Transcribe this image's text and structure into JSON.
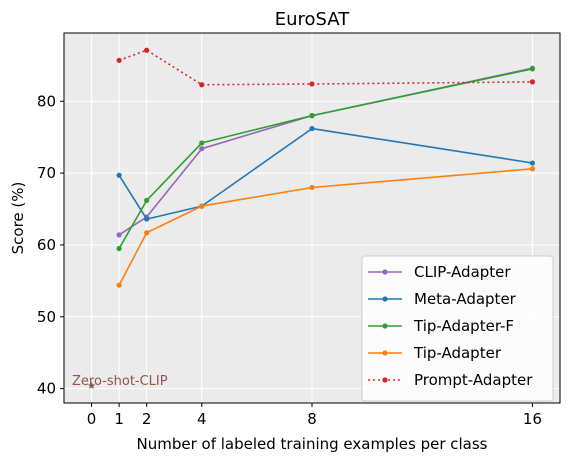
{
  "chart_data": {
    "type": "line",
    "title": "EuroSAT",
    "xlabel": "Number of labeled training examples per class",
    "ylabel": "Score (%)",
    "xlim": [
      -1.0,
      17.0
    ],
    "ylim": [
      38.0,
      89.5
    ],
    "xticks": [
      0,
      1,
      2,
      4,
      8,
      16
    ],
    "yticks": [
      40,
      50,
      60,
      70,
      80
    ],
    "grid": true,
    "legend_position": "lower-right",
    "series": [
      {
        "name": "CLIP-Adapter",
        "color": "#9467bd",
        "style": "solid",
        "x": [
          1,
          2,
          4,
          8,
          16
        ],
        "values": [
          61.4,
          63.9,
          73.4,
          78.0,
          84.6
        ]
      },
      {
        "name": "Meta-Adapter",
        "color": "#1f77b4",
        "style": "solid",
        "x": [
          1,
          2,
          4,
          8,
          16
        ],
        "values": [
          69.7,
          63.6,
          65.4,
          76.2,
          71.4
        ]
      },
      {
        "name": "Tip-Adapter-F",
        "color": "#2ca02c",
        "style": "solid",
        "x": [
          1,
          2,
          4,
          8,
          16
        ],
        "values": [
          59.5,
          66.2,
          74.2,
          78.0,
          84.5
        ]
      },
      {
        "name": "Tip-Adapter",
        "color": "#ff7f0e",
        "style": "solid",
        "x": [
          1,
          2,
          4,
          8,
          16
        ],
        "values": [
          54.4,
          61.7,
          65.4,
          68.0,
          70.6
        ]
      },
      {
        "name": "Prompt-Adapter",
        "color": "#d62728",
        "style": "dotted",
        "x": [
          1,
          2,
          4,
          8,
          16
        ],
        "values": [
          85.7,
          87.1,
          82.3,
          82.4,
          82.7
        ]
      }
    ],
    "annotations": [
      {
        "text": "Zero-shot-CLIP",
        "x": 0,
        "y": 40.4,
        "color": "#8c564b",
        "marker": "star"
      }
    ]
  }
}
